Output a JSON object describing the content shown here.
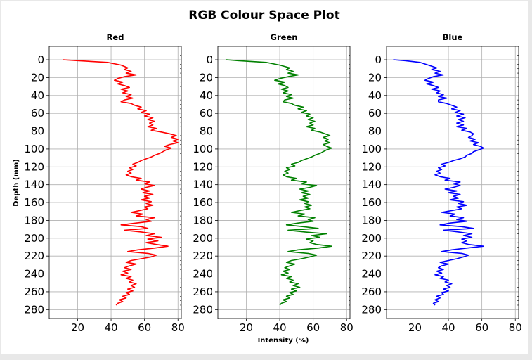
{
  "figure": {
    "suptitle": "RGB Colour Space Plot",
    "ylabel": "Depth (mm)",
    "xlabel": "Intensity (%)"
  },
  "chart_data": [
    {
      "type": "line",
      "title": "Red",
      "color": "#ff0000",
      "xlabel": "",
      "ylabel": "Depth (mm)",
      "xlim": [
        3,
        82
      ],
      "ylim": [
        290,
        -15
      ],
      "y_inverted": true,
      "xticks": [
        20,
        40,
        60,
        80
      ],
      "yticks": [
        0,
        20,
        40,
        60,
        80,
        100,
        120,
        140,
        160,
        180,
        200,
        220,
        240,
        260,
        280
      ],
      "grid": true,
      "series": [
        {
          "depth": [
            0,
            1,
            3,
            6,
            9,
            11,
            13,
            15,
            17,
            19,
            21,
            23,
            25,
            27,
            29,
            31,
            33,
            35,
            37,
            39,
            41,
            43,
            45,
            47,
            49,
            51,
            53,
            55,
            57,
            59,
            61,
            63,
            65,
            67,
            69,
            71,
            73,
            75,
            77,
            79,
            81,
            83,
            85,
            87,
            89,
            91,
            93,
            95,
            97,
            99,
            101,
            103,
            105,
            107,
            109,
            111,
            113,
            115,
            117,
            119,
            121,
            123,
            125,
            127,
            129,
            131,
            133,
            135,
            137,
            139,
            141,
            143,
            145,
            147,
            149,
            151,
            153,
            155,
            157,
            159,
            161,
            163,
            165,
            167,
            169,
            171,
            173,
            175,
            177,
            179,
            181,
            183,
            185,
            187,
            189,
            191,
            193,
            195,
            197,
            199,
            201,
            203,
            205,
            207,
            209,
            211,
            213,
            215,
            217,
            219,
            221,
            223,
            225,
            227,
            229,
            231,
            233,
            235,
            237,
            239,
            241,
            243,
            245,
            247,
            249,
            251,
            253,
            255,
            257,
            259,
            261,
            263,
            265,
            267,
            269,
            271,
            273,
            275
          ],
          "values": [
            11,
            20,
            38,
            46,
            50,
            48,
            52,
            49,
            55,
            48,
            44,
            42,
            47,
            44,
            48,
            51,
            46,
            50,
            47,
            52,
            49,
            53,
            48,
            46,
            52,
            54,
            58,
            56,
            61,
            58,
            63,
            60,
            65,
            62,
            66,
            63,
            65,
            62,
            67,
            64,
            70,
            75,
            79,
            76,
            80,
            77,
            80,
            75,
            72,
            76,
            73,
            71,
            69,
            66,
            64,
            61,
            58,
            56,
            53,
            55,
            51,
            53,
            50,
            52,
            49,
            52,
            58,
            55,
            63,
            60,
            66,
            61,
            58,
            63,
            59,
            65,
            60,
            63,
            58,
            64,
            61,
            65,
            60,
            62,
            57,
            52,
            59,
            55,
            66,
            61,
            64,
            55,
            46,
            58,
            62,
            48,
            58,
            66,
            61,
            70,
            62,
            68,
            61,
            67,
            74,
            66,
            56,
            50,
            62,
            67,
            64,
            58,
            52,
            49,
            55,
            51,
            48,
            52,
            47,
            50,
            46,
            52,
            49,
            53,
            51,
            55,
            52,
            54,
            50,
            53,
            49,
            51,
            47,
            49,
            45,
            47,
            44,
            43
          ]
        }
      ]
    },
    {
      "type": "line",
      "title": "Green",
      "color": "#008000",
      "xlabel": "Intensity (%)",
      "xlim": [
        3,
        82
      ],
      "ylim": [
        290,
        -15
      ],
      "y_inverted": true,
      "xticks": [
        20,
        40,
        60,
        80
      ],
      "yticks": [
        0,
        20,
        40,
        60,
        80,
        100,
        120,
        140,
        160,
        180,
        200,
        220,
        240,
        260,
        280
      ],
      "grid": true,
      "series": [
        {
          "depth": [
            0,
            1,
            3,
            6,
            9,
            11,
            13,
            15,
            17,
            19,
            21,
            23,
            25,
            27,
            29,
            31,
            33,
            35,
            37,
            39,
            41,
            43,
            45,
            47,
            49,
            51,
            53,
            55,
            57,
            59,
            61,
            63,
            65,
            67,
            69,
            71,
            73,
            75,
            77,
            79,
            81,
            83,
            85,
            87,
            89,
            91,
            93,
            95,
            97,
            99,
            101,
            103,
            105,
            107,
            109,
            111,
            113,
            115,
            117,
            119,
            121,
            123,
            125,
            127,
            129,
            131,
            133,
            135,
            137,
            139,
            141,
            143,
            145,
            147,
            149,
            151,
            153,
            155,
            157,
            159,
            161,
            163,
            165,
            167,
            169,
            171,
            173,
            175,
            177,
            179,
            181,
            183,
            185,
            187,
            189,
            191,
            193,
            195,
            197,
            199,
            201,
            203,
            205,
            207,
            209,
            211,
            213,
            215,
            217,
            219,
            221,
            223,
            225,
            227,
            229,
            231,
            233,
            235,
            237,
            239,
            241,
            243,
            245,
            247,
            249,
            251,
            253,
            255,
            257,
            259,
            261,
            263,
            265,
            267,
            269,
            271,
            273,
            275
          ],
          "values": [
            8,
            15,
            32,
            40,
            46,
            44,
            48,
            45,
            51,
            45,
            40,
            37,
            43,
            39,
            43,
            45,
            41,
            45,
            42,
            47,
            44,
            48,
            43,
            42,
            47,
            49,
            54,
            51,
            56,
            53,
            58,
            56,
            60,
            57,
            61,
            58,
            60,
            56,
            61,
            59,
            64,
            67,
            70,
            66,
            69,
            67,
            70,
            66,
            68,
            71,
            68,
            66,
            64,
            61,
            59,
            56,
            53,
            51,
            47,
            49,
            44,
            46,
            43,
            45,
            42,
            44,
            50,
            47,
            56,
            53,
            62,
            58,
            52,
            57,
            53,
            58,
            54,
            57,
            52,
            57,
            55,
            59,
            55,
            58,
            52,
            47,
            55,
            51,
            61,
            57,
            60,
            51,
            44,
            54,
            63,
            45,
            55,
            68,
            59,
            64,
            56,
            60,
            58,
            62,
            71,
            63,
            51,
            45,
            57,
            62,
            58,
            53,
            47,
            44,
            49,
            46,
            43,
            46,
            42,
            45,
            41,
            47,
            44,
            48,
            46,
            51,
            48,
            52,
            47,
            50,
            46,
            48,
            44,
            46,
            42,
            44,
            41,
            40
          ]
        }
      ]
    },
    {
      "type": "line",
      "title": "Blue",
      "color": "#0000ff",
      "xlabel": "",
      "xlim": [
        3,
        82
      ],
      "ylim": [
        290,
        -15
      ],
      "y_inverted": true,
      "xticks": [
        20,
        40,
        60,
        80
      ],
      "yticks": [
        0,
        20,
        40,
        60,
        80,
        100,
        120,
        140,
        160,
        180,
        200,
        220,
        240,
        260,
        280
      ],
      "grid": true,
      "series": [
        {
          "depth": [
            0,
            1,
            3,
            6,
            9,
            11,
            13,
            15,
            17,
            19,
            21,
            23,
            25,
            27,
            29,
            31,
            33,
            35,
            37,
            39,
            41,
            43,
            45,
            47,
            49,
            51,
            53,
            55,
            57,
            59,
            61,
            63,
            65,
            67,
            69,
            71,
            73,
            75,
            77,
            79,
            81,
            83,
            85,
            87,
            89,
            91,
            93,
            95,
            97,
            99,
            101,
            103,
            105,
            107,
            109,
            111,
            113,
            115,
            117,
            119,
            121,
            123,
            125,
            127,
            129,
            131,
            133,
            135,
            137,
            139,
            141,
            143,
            145,
            147,
            149,
            151,
            153,
            155,
            157,
            159,
            161,
            163,
            165,
            167,
            169,
            171,
            173,
            175,
            177,
            179,
            181,
            183,
            185,
            187,
            189,
            191,
            193,
            195,
            197,
            199,
            201,
            203,
            205,
            207,
            209,
            211,
            213,
            215,
            217,
            219,
            221,
            223,
            225,
            227,
            229,
            231,
            233,
            235,
            237,
            239,
            241,
            243,
            245,
            247,
            249,
            251,
            253,
            255,
            257,
            259,
            261,
            263,
            265,
            267,
            269,
            271,
            273,
            275
          ],
          "values": [
            7,
            14,
            23,
            28,
            33,
            30,
            35,
            32,
            37,
            31,
            28,
            26,
            31,
            27,
            31,
            34,
            30,
            35,
            33,
            37,
            34,
            39,
            34,
            34,
            39,
            42,
            45,
            42,
            47,
            44,
            49,
            45,
            50,
            46,
            49,
            45,
            49,
            45,
            51,
            48,
            53,
            55,
            54,
            52,
            56,
            53,
            58,
            55,
            59,
            61,
            58,
            55,
            54,
            51,
            50,
            47,
            43,
            40,
            36,
            38,
            34,
            36,
            33,
            35,
            32,
            35,
            41,
            38,
            47,
            43,
            47,
            43,
            38,
            45,
            40,
            47,
            43,
            46,
            41,
            49,
            46,
            51,
            45,
            48,
            42,
            36,
            44,
            41,
            49,
            45,
            51,
            41,
            35,
            48,
            55,
            37,
            46,
            54,
            49,
            54,
            48,
            51,
            48,
            52,
            61,
            51,
            42,
            36,
            48,
            52,
            49,
            45,
            40,
            35,
            40,
            36,
            34,
            37,
            33,
            36,
            32,
            37,
            35,
            40,
            38,
            42,
            39,
            41,
            37,
            40,
            36,
            37,
            33,
            35,
            32,
            34,
            31,
            32
          ]
        }
      ]
    }
  ]
}
